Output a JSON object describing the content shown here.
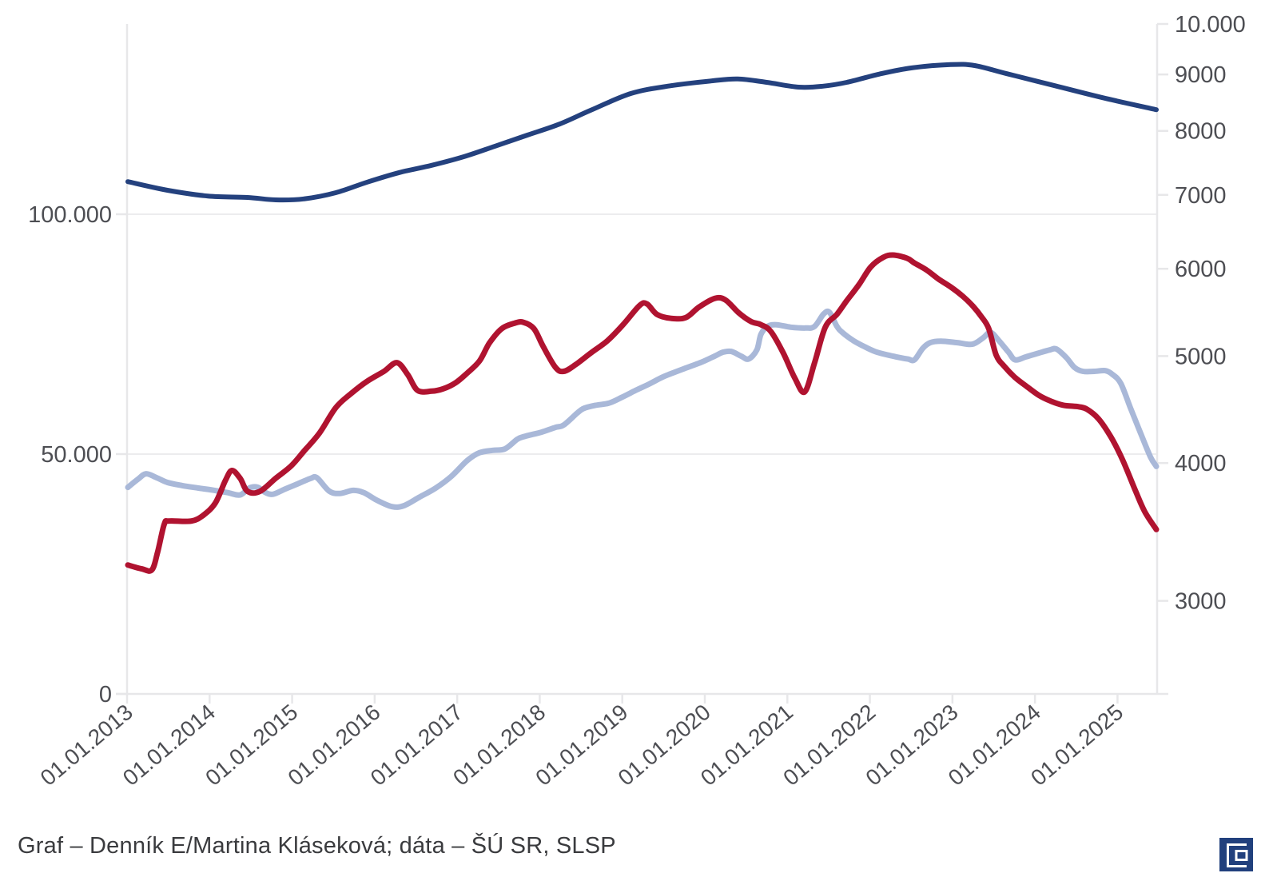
{
  "caption": {
    "text": "Graf – Denník E/Martina Kláseková; dáta – ŠÚ SR, SLSP"
  },
  "logo": {
    "name": "Denník E",
    "bg_color": "#21407D",
    "glyph_color": "#FFFFFF"
  },
  "colors": {
    "background": "#FFFFFF",
    "grid": "#ECECEE",
    "axis_line": "#E7E7E9",
    "axis_text": "#4D4E53",
    "caption_text": "#3A3B3E"
  },
  "chart_data": {
    "type": "line",
    "title": "",
    "legend": "none",
    "grid": "horizontal gridlines at left-axis 50.000 and 100.000 only",
    "x_axis": {
      "tick_labels": [
        "01.01.2013",
        "01.01.2014",
        "01.01.2015",
        "01.01.2016",
        "01.01.2017",
        "01.01.2018",
        "01.01.2019",
        "01.01.2020",
        "01.01.2021",
        "01.01.2022",
        "01.01.2023",
        "01.01.2024",
        "01.01.2025"
      ],
      "tick_years": [
        2013,
        2014,
        2015,
        2016,
        2017,
        2018,
        2019,
        2020,
        2021,
        2022,
        2023,
        2024,
        2025
      ],
      "range": [
        2013.0,
        2025.48
      ],
      "label_rotation_deg": -40
    },
    "y_axis_left": {
      "scale": "linear",
      "tick_labels": [
        "0",
        "50.000",
        "100.000"
      ],
      "tick_values": [
        0,
        50000,
        100000
      ],
      "range": [
        0,
        139600
      ],
      "gridline_values": [
        50000,
        100000
      ]
    },
    "y_axis_right": {
      "scale": "log",
      "tick_labels": [
        "3000",
        "4000",
        "5000",
        "6000",
        "7000",
        "8000",
        "9000",
        "10.000"
      ],
      "tick_values": [
        3000,
        4000,
        5000,
        6000,
        7000,
        8000,
        9000,
        10000
      ],
      "range": [
        2900,
        10500
      ]
    },
    "series": [
      {
        "name": "dark-blue-line",
        "axis": "left",
        "color": "#24417E",
        "stroke_width": 6,
        "points": [
          [
            2013.01,
            106800
          ],
          [
            2013.49,
            105000
          ],
          [
            2013.98,
            103800
          ],
          [
            2014.46,
            103500
          ],
          [
            2014.8,
            103000
          ],
          [
            2015.14,
            103200
          ],
          [
            2015.53,
            104500
          ],
          [
            2015.91,
            106700
          ],
          [
            2016.3,
            108700
          ],
          [
            2016.69,
            110200
          ],
          [
            2017.08,
            112000
          ],
          [
            2017.46,
            114200
          ],
          [
            2017.85,
            116500
          ],
          [
            2018.24,
            118800
          ],
          [
            2018.62,
            121700
          ],
          [
            2019.11,
            125200
          ],
          [
            2019.59,
            126800
          ],
          [
            2020.08,
            127800
          ],
          [
            2020.4,
            128200
          ],
          [
            2020.75,
            127500
          ],
          [
            2021.14,
            126500
          ],
          [
            2021.43,
            126700
          ],
          [
            2021.72,
            127500
          ],
          [
            2022.11,
            129200
          ],
          [
            2022.5,
            130500
          ],
          [
            2022.98,
            131200
          ],
          [
            2023.27,
            131000
          ],
          [
            2023.66,
            129300
          ],
          [
            2024.24,
            126800
          ],
          [
            2024.82,
            124300
          ],
          [
            2025.47,
            121800
          ]
        ]
      },
      {
        "name": "light-blue-line",
        "axis": "right",
        "color": "#A9B8D8",
        "stroke_width": 7,
        "points": [
          [
            2013.01,
            3802
          ],
          [
            2013.13,
            3866
          ],
          [
            2013.23,
            3911
          ],
          [
            2013.36,
            3879
          ],
          [
            2013.49,
            3841
          ],
          [
            2013.67,
            3816
          ],
          [
            2013.86,
            3797
          ],
          [
            2014.06,
            3778
          ],
          [
            2014.22,
            3760
          ],
          [
            2014.37,
            3742
          ],
          [
            2014.48,
            3797
          ],
          [
            2014.58,
            3803
          ],
          [
            2014.68,
            3760
          ],
          [
            2014.77,
            3748
          ],
          [
            2014.9,
            3784
          ],
          [
            2015.04,
            3822
          ],
          [
            2015.22,
            3872
          ],
          [
            2015.3,
            3879
          ],
          [
            2015.45,
            3772
          ],
          [
            2015.58,
            3754
          ],
          [
            2015.74,
            3778
          ],
          [
            2015.87,
            3760
          ],
          [
            2016.03,
            3700
          ],
          [
            2016.21,
            3652
          ],
          [
            2016.35,
            3658
          ],
          [
            2016.54,
            3724
          ],
          [
            2016.74,
            3797
          ],
          [
            2016.93,
            3891
          ],
          [
            2017.12,
            4020
          ],
          [
            2017.27,
            4087
          ],
          [
            2017.43,
            4107
          ],
          [
            2017.58,
            4120
          ],
          [
            2017.73,
            4204
          ],
          [
            2017.83,
            4231
          ],
          [
            2018.02,
            4266
          ],
          [
            2018.19,
            4309
          ],
          [
            2018.29,
            4330
          ],
          [
            2018.45,
            4437
          ],
          [
            2018.53,
            4482
          ],
          [
            2018.67,
            4511
          ],
          [
            2018.84,
            4533
          ],
          [
            2018.99,
            4586
          ],
          [
            2019.16,
            4654
          ],
          [
            2019.32,
            4715
          ],
          [
            2019.48,
            4782
          ],
          [
            2019.59,
            4820
          ],
          [
            2019.81,
            4890
          ],
          [
            2019.96,
            4937
          ],
          [
            2020.12,
            5000
          ],
          [
            2020.22,
            5041
          ],
          [
            2020.32,
            5049
          ],
          [
            2020.44,
            5000
          ],
          [
            2020.53,
            4969
          ],
          [
            2020.63,
            5065
          ],
          [
            2020.68,
            5232
          ],
          [
            2020.76,
            5320
          ],
          [
            2020.87,
            5338
          ],
          [
            2021.04,
            5311
          ],
          [
            2021.22,
            5302
          ],
          [
            2021.33,
            5320
          ],
          [
            2021.44,
            5460
          ],
          [
            2021.51,
            5478
          ],
          [
            2021.6,
            5320
          ],
          [
            2021.67,
            5250
          ],
          [
            2021.8,
            5164
          ],
          [
            2021.94,
            5097
          ],
          [
            2022.06,
            5049
          ],
          [
            2022.19,
            5017
          ],
          [
            2022.32,
            4992
          ],
          [
            2022.46,
            4969
          ],
          [
            2022.54,
            4961
          ],
          [
            2022.64,
            5082
          ],
          [
            2022.73,
            5142
          ],
          [
            2022.86,
            5159
          ],
          [
            2023.06,
            5142
          ],
          [
            2023.24,
            5125
          ],
          [
            2023.37,
            5193
          ],
          [
            2023.46,
            5254
          ],
          [
            2023.56,
            5167
          ],
          [
            2023.68,
            5041
          ],
          [
            2023.76,
            4961
          ],
          [
            2023.89,
            4992
          ],
          [
            2024.05,
            5033
          ],
          [
            2024.18,
            5065
          ],
          [
            2024.26,
            5074
          ],
          [
            2024.38,
            4984
          ],
          [
            2024.48,
            4882
          ],
          [
            2024.58,
            4843
          ],
          [
            2024.72,
            4843
          ],
          [
            2024.85,
            4851
          ],
          [
            2024.94,
            4812
          ],
          [
            2025.04,
            4722
          ],
          [
            2025.16,
            4482
          ],
          [
            2025.29,
            4238
          ],
          [
            2025.4,
            4050
          ],
          [
            2025.47,
            3972
          ]
        ]
      },
      {
        "name": "red-line",
        "axis": "right",
        "color": "#B01330",
        "stroke_width": 7,
        "points": [
          [
            2013.01,
            3233
          ],
          [
            2013.18,
            3207
          ],
          [
            2013.3,
            3200
          ],
          [
            2013.37,
            3320
          ],
          [
            2013.45,
            3520
          ],
          [
            2013.51,
            3544
          ],
          [
            2013.78,
            3544
          ],
          [
            2013.93,
            3590
          ],
          [
            2014.07,
            3680
          ],
          [
            2014.19,
            3855
          ],
          [
            2014.27,
            3938
          ],
          [
            2014.37,
            3874
          ],
          [
            2014.46,
            3770
          ],
          [
            2014.61,
            3770
          ],
          [
            2014.8,
            3874
          ],
          [
            2014.99,
            3977
          ],
          [
            2015.14,
            4097
          ],
          [
            2015.33,
            4257
          ],
          [
            2015.53,
            4491
          ],
          [
            2015.72,
            4628
          ],
          [
            2015.91,
            4745
          ],
          [
            2016.11,
            4842
          ],
          [
            2016.27,
            4932
          ],
          [
            2016.4,
            4810
          ],
          [
            2016.52,
            4654
          ],
          [
            2016.69,
            4647
          ],
          [
            2016.83,
            4670
          ],
          [
            2016.98,
            4729
          ],
          [
            2017.12,
            4825
          ],
          [
            2017.27,
            4949
          ],
          [
            2017.39,
            5138
          ],
          [
            2017.54,
            5295
          ],
          [
            2017.7,
            5357
          ],
          [
            2017.8,
            5366
          ],
          [
            2017.93,
            5295
          ],
          [
            2018.04,
            5104
          ],
          [
            2018.19,
            4884
          ],
          [
            2018.29,
            4843
          ],
          [
            2018.43,
            4909
          ],
          [
            2018.62,
            5034
          ],
          [
            2018.82,
            5163
          ],
          [
            2019.01,
            5339
          ],
          [
            2019.21,
            5557
          ],
          [
            2019.3,
            5575
          ],
          [
            2019.42,
            5455
          ],
          [
            2019.59,
            5410
          ],
          [
            2019.77,
            5419
          ],
          [
            2019.93,
            5539
          ],
          [
            2020.12,
            5640
          ],
          [
            2020.25,
            5622
          ],
          [
            2020.41,
            5473
          ],
          [
            2020.56,
            5374
          ],
          [
            2020.68,
            5339
          ],
          [
            2020.8,
            5264
          ],
          [
            2020.95,
            5034
          ],
          [
            2021.09,
            4776
          ],
          [
            2021.21,
            4640
          ],
          [
            2021.33,
            4932
          ],
          [
            2021.46,
            5312
          ],
          [
            2021.6,
            5455
          ],
          [
            2021.72,
            5613
          ],
          [
            2021.87,
            5807
          ],
          [
            2022.01,
            6022
          ],
          [
            2022.16,
            6143
          ],
          [
            2022.28,
            6174
          ],
          [
            2022.45,
            6133
          ],
          [
            2022.54,
            6072
          ],
          [
            2022.69,
            5982
          ],
          [
            2022.83,
            5873
          ],
          [
            2022.98,
            5776
          ],
          [
            2023.13,
            5661
          ],
          [
            2023.25,
            5548
          ],
          [
            2023.35,
            5430
          ],
          [
            2023.44,
            5295
          ],
          [
            2023.53,
            5010
          ],
          [
            2023.63,
            4893
          ],
          [
            2023.76,
            4781
          ],
          [
            2023.9,
            4693
          ],
          [
            2024.05,
            4606
          ],
          [
            2024.19,
            4552
          ],
          [
            2024.34,
            4513
          ],
          [
            2024.53,
            4498
          ],
          [
            2024.63,
            4475
          ],
          [
            2024.77,
            4386
          ],
          [
            2024.92,
            4223
          ],
          [
            2025.06,
            4029
          ],
          [
            2025.21,
            3787
          ],
          [
            2025.33,
            3614
          ],
          [
            2025.47,
            3482
          ]
        ]
      }
    ]
  }
}
